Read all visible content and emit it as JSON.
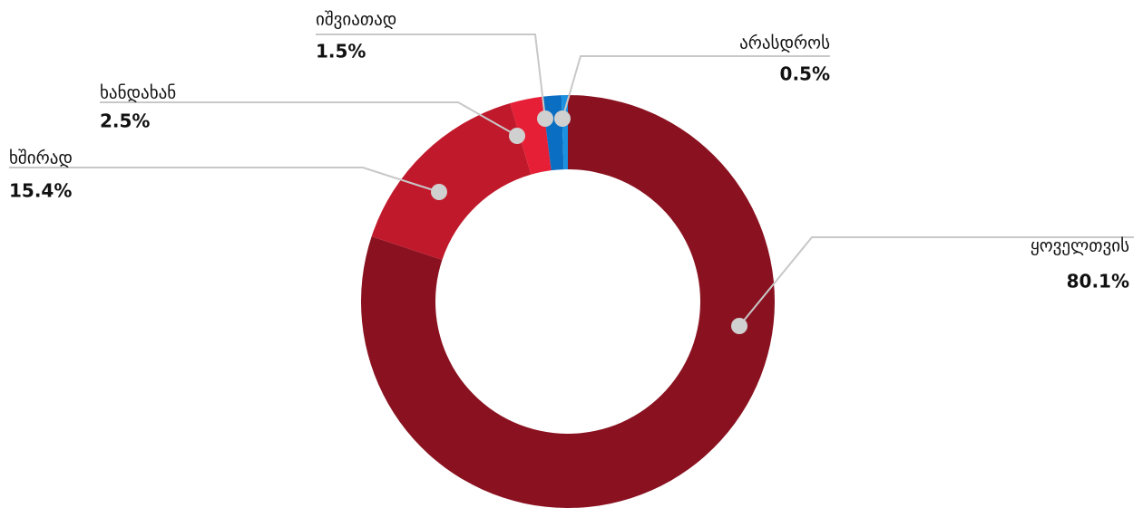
{
  "chart_data": {
    "type": "donut",
    "categories": [
      "ყოველთვის",
      "ხშირად",
      "ხანდახან",
      "იშვიათად",
      "არასდროს"
    ],
    "values": [
      80.1,
      15.4,
      2.5,
      1.5,
      0.5
    ],
    "value_labels": [
      "80.1%",
      "15.4%",
      "2.5%",
      "1.5%",
      "0.5%"
    ],
    "colors": [
      "#8a1220",
      "#c0192b",
      "#e61f36",
      "#0a6ec2",
      "#1b8fe0"
    ]
  }
}
